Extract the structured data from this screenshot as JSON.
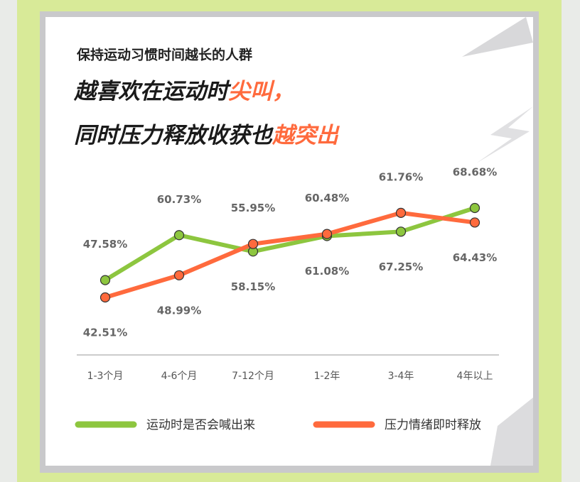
{
  "chart_data": {
    "type": "line",
    "title": "保持运动习惯时间越长的人群",
    "headline": [
      [
        {
          "text": "越喜欢在运动时",
          "highlight": false
        },
        {
          "text": "尖叫，",
          "highlight": true
        }
      ],
      [
        {
          "text": "同时压力释放收获也",
          "highlight": false
        },
        {
          "text": "越突出",
          "highlight": true
        }
      ]
    ],
    "categories": [
      "1-3个月",
      "4-6个月",
      "7-12个月",
      "1-2年",
      "3-4年",
      "4年以上"
    ],
    "series": [
      {
        "name": "运动时是否会喊出来",
        "color": "#8dc63f",
        "values": [
          47.58,
          60.73,
          55.95,
          60.48,
          61.76,
          68.68
        ],
        "value_labels": [
          "47.58%",
          "60.73%",
          "55.95%",
          "60.48%",
          "61.76%",
          "68.68%"
        ]
      },
      {
        "name": "压力情绪即时释放",
        "color": "#ff6a3d",
        "values": [
          42.51,
          48.99,
          58.15,
          61.08,
          67.25,
          64.43
        ],
        "value_labels": [
          "42.51%",
          "48.99%",
          "58.15%",
          "61.08%",
          "67.25%",
          "64.43%"
        ]
      }
    ]
  }
}
